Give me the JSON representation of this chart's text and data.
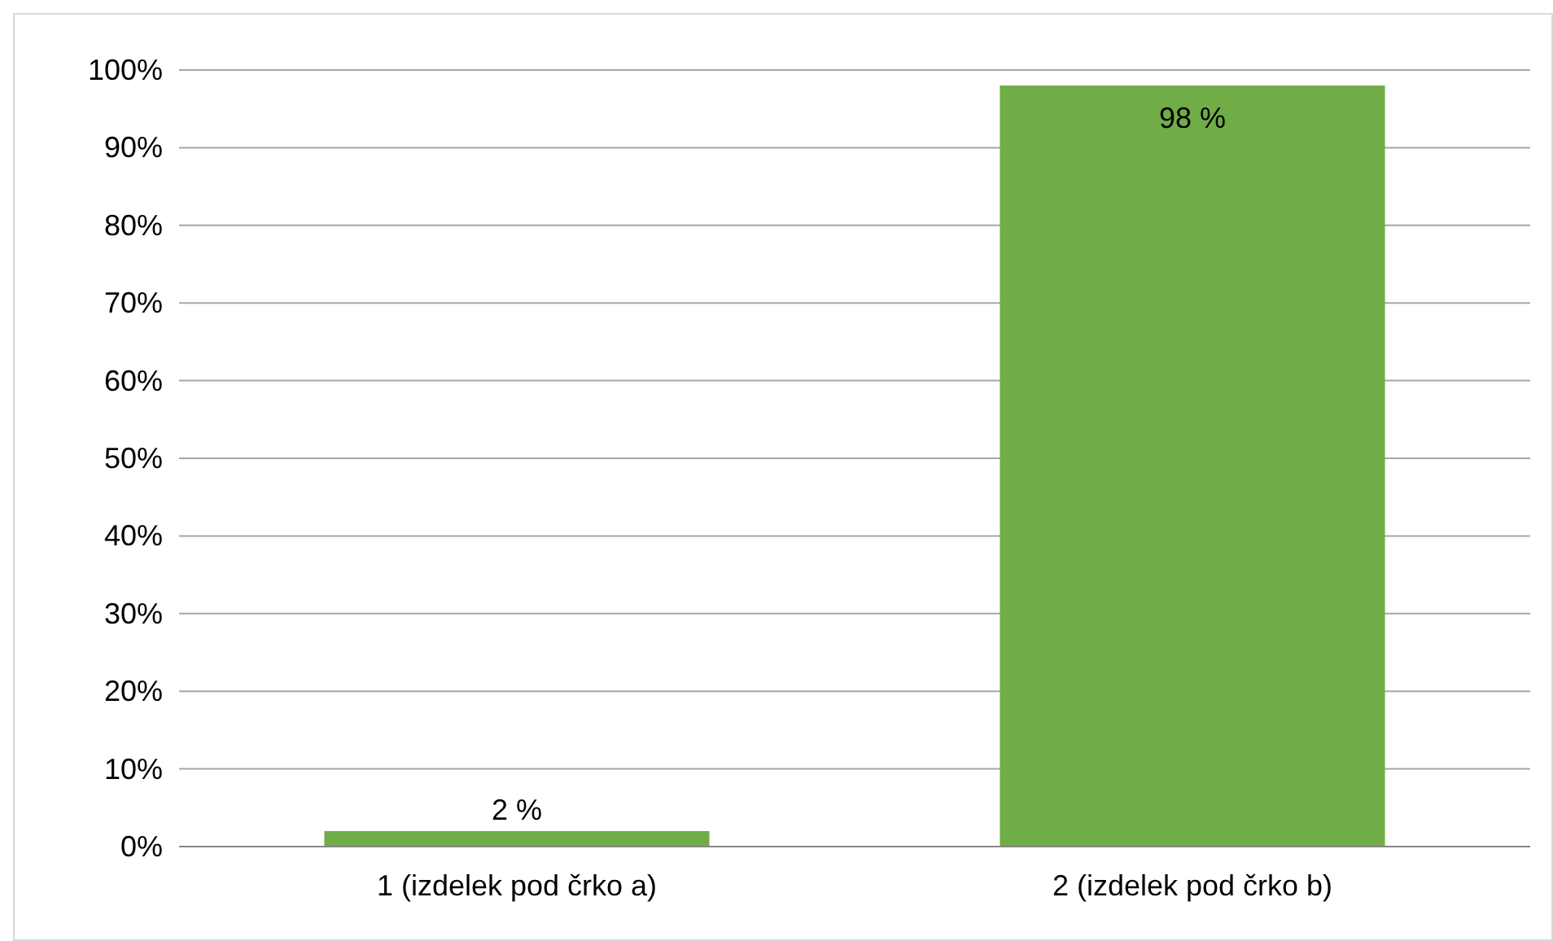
{
  "chart_data": {
    "type": "bar",
    "categories": [
      "1 (izdelek pod črko a)",
      "2 (izdelek pod črko b)"
    ],
    "values": [
      2,
      98
    ],
    "color": "#70ad47",
    "value_labels": [
      "2 %",
      "98 %"
    ],
    "ylim": [
      0,
      100
    ],
    "yticks": [
      {
        "value": 0,
        "label": "0%"
      },
      {
        "value": 10,
        "label": "10%"
      },
      {
        "value": 20,
        "label": "20%"
      },
      {
        "value": 30,
        "label": "30%"
      },
      {
        "value": 40,
        "label": "40%"
      },
      {
        "value": 50,
        "label": "50%"
      },
      {
        "value": 60,
        "label": "60%"
      },
      {
        "value": 70,
        "label": "70%"
      },
      {
        "value": 80,
        "label": "80%"
      },
      {
        "value": 90,
        "label": "90%"
      },
      {
        "value": 100,
        "label": "100%"
      }
    ],
    "grid": "y"
  }
}
